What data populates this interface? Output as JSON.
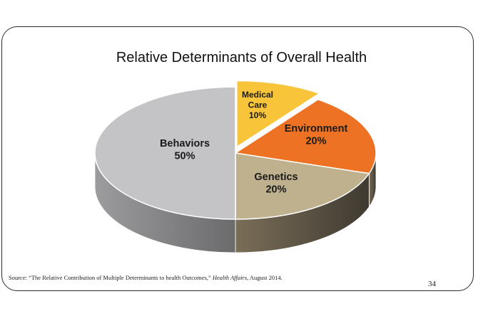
{
  "slide": {
    "source_prefix": "Source: “The Relative Contribution of Multiple Determinants to health Outcomes,” ",
    "source_journal": "Health Affairs",
    "source_suffix": ", August 2014.",
    "page_number": "34"
  },
  "chart_data": {
    "type": "pie",
    "title": "Relative Determinants of Overall Health",
    "style": "3d",
    "categories": [
      "Medical Care",
      "Environment",
      "Genetics",
      "Behaviors"
    ],
    "values": [
      10,
      20,
      20,
      50
    ],
    "unit": "%",
    "value_labels": [
      "10%",
      "20%",
      "20%",
      "50%"
    ],
    "label_lines": [
      [
        "Medical",
        "Care",
        "10%"
      ],
      [
        "Environment",
        "20%"
      ],
      [
        "Genetics",
        "20%"
      ],
      [
        "Behaviors",
        "50%"
      ]
    ],
    "colors": {
      "Medical Care": "#f7c43a",
      "Environment": "#ee7223",
      "Genetics": "#bfb08e",
      "Behaviors": "#c4c4c6"
    },
    "exploded": [
      "Medical Care"
    ],
    "legend": "none"
  }
}
